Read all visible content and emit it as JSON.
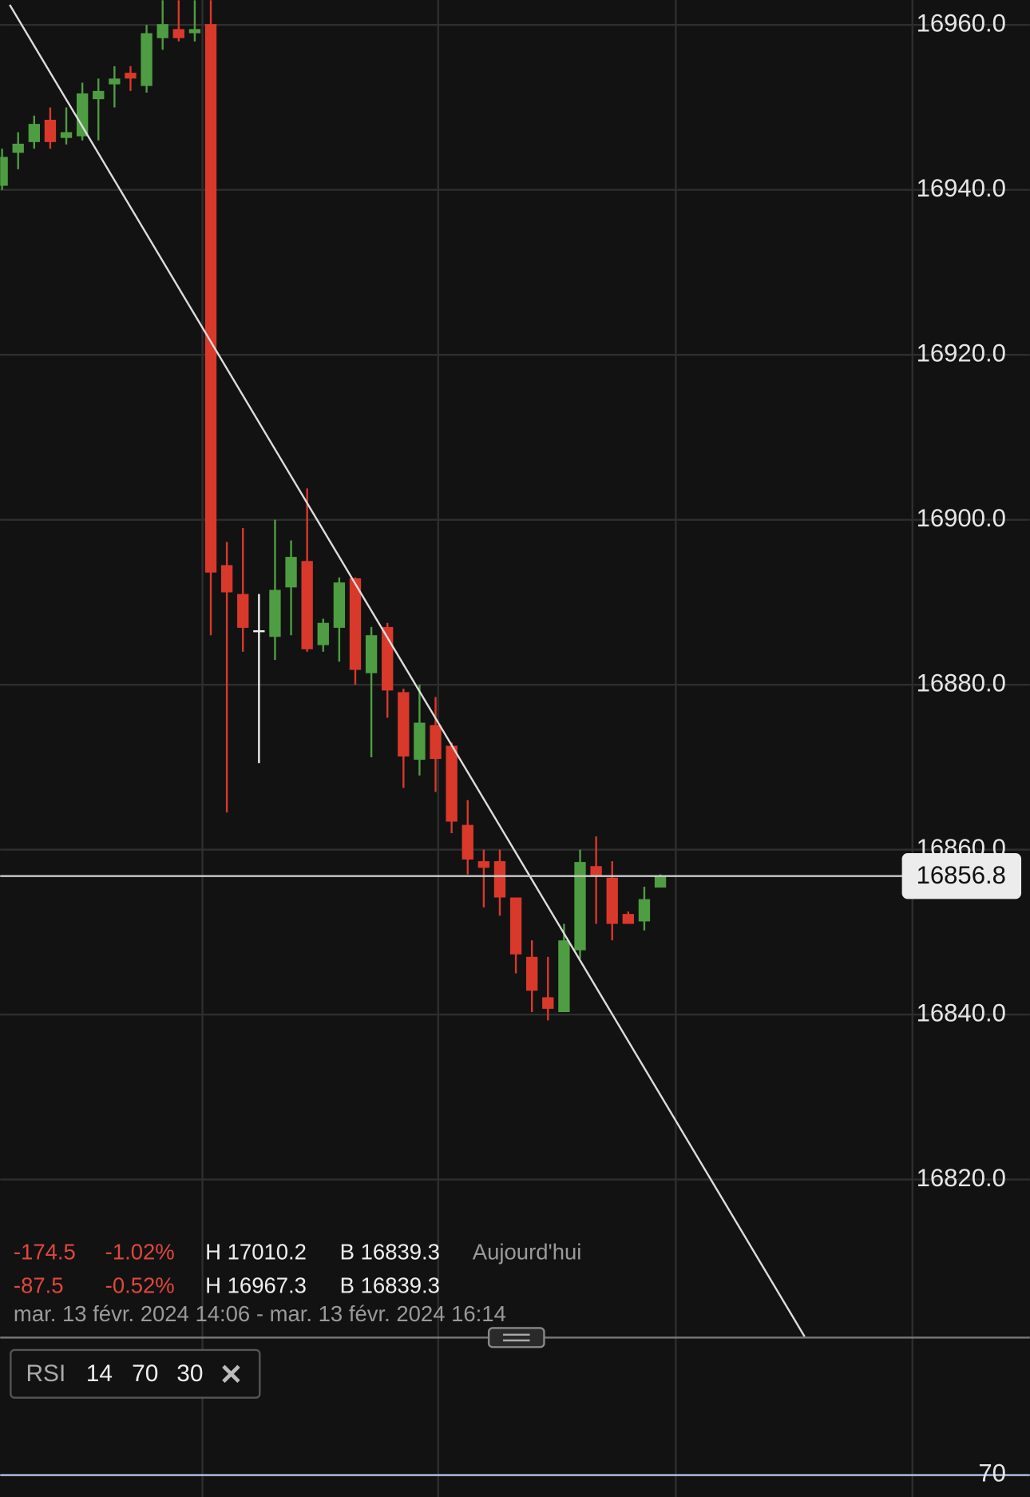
{
  "chart_data": {
    "type": "candlestick",
    "up_color": "#4f9d42",
    "down_color": "#d9392b",
    "doji_color": "#eeeeee",
    "ylim": [
      16962.1,
      16799.1
    ],
    "yticks": [
      {
        "value": 16960,
        "label": "16960.0"
      },
      {
        "value": 16940,
        "label": "16940.0"
      },
      {
        "value": 16920,
        "label": "16920.0"
      },
      {
        "value": 16900,
        "label": "16900.0"
      },
      {
        "value": 16880,
        "label": "16880.0"
      },
      {
        "value": 16860,
        "label": "16860.0"
      },
      {
        "value": 16840,
        "label": "16840.0"
      },
      {
        "value": 16820,
        "label": "16820.0"
      }
    ],
    "grid": true,
    "open": [
      16940.5,
      16944.5,
      16945.8,
      16948.5,
      16946.3,
      16946.5,
      16951,
      16952.8,
      16954.2,
      16952.6,
      16958.4,
      16959.5,
      16959,
      16960.1,
      16894.5,
      16891,
      16886.6,
      16885.8,
      16891.8,
      16895,
      16884.8,
      16886.9,
      16892.9,
      16881.4,
      16887,
      16879.1,
      16870.9,
      16875.1,
      16872.6,
      16863,
      16858.6,
      16858.6,
      16854.2,
      16847,
      16842.1,
      16840.3,
      16847.8,
      16858,
      16856.6,
      16852.2,
      16851.3,
      16855.4
    ],
    "high": [
      16945,
      16947,
      16949,
      16950,
      16950,
      16953,
      16953.5,
      16955,
      16955,
      16960,
      16963,
      16963,
      16963,
      16963,
      16897.3,
      16899,
      16891,
      16900,
      16897.5,
      16903.8,
      16888,
      16893,
      16893,
      16887,
      16887.5,
      16879.5,
      16880,
      16878.5,
      16873,
      16866,
      16860,
      16860,
      16854.2,
      16849,
      16847,
      16851,
      16860,
      16861.6,
      16858.6,
      16852.5,
      16855.5,
      16857
    ],
    "low": [
      16940,
      16942.5,
      16945,
      16945,
      16945.5,
      16946,
      16946,
      16950,
      16952,
      16951.8,
      16957,
      16958,
      16958,
      16886,
      16864.5,
      16884,
      16870.5,
      16883,
      16886,
      16884,
      16884,
      16882.8,
      16880,
      16871.2,
      16876,
      16867.5,
      16869,
      16867,
      16862,
      16857,
      16853,
      16852,
      16845,
      16840.3,
      16839.3,
      16840.3,
      16846.8,
      16851,
      16849,
      16851,
      16850.2,
      16856
    ],
    "close": [
      16944,
      16945.6,
      16948,
      16945.8,
      16947,
      16951.7,
      16952,
      16953.5,
      16953.5,
      16959,
      16960.1,
      16958.4,
      16959.5,
      16893.6,
      16891.2,
      16886.9,
      16886.6,
      16891.5,
      16895.5,
      16884.3,
      16887.5,
      16892.4,
      16881.8,
      16886,
      16879.3,
      16871.3,
      16875.4,
      16871,
      16863.4,
      16858.8,
      16857.8,
      16854.2,
      16847.3,
      16842.9,
      16840.7,
      16849,
      16858.5,
      16856.9,
      16851,
      16851,
      16854,
      16856.8
    ],
    "last_price": 16856.8,
    "rsi": {
      "label": "RSI",
      "params": [
        "14",
        "70",
        "30"
      ],
      "level": 70
    }
  },
  "info": {
    "rows": [
      [
        "-174.5",
        "-1.02%",
        "H 17010.2",
        "B 16839.3",
        "Aujourd'hui"
      ],
      [
        "-87.5",
        "-0.52%",
        "H 16967.3",
        "B 16839.3"
      ]
    ],
    "range": "mar. 13 févr. 2024 14:06 - mar. 13 févr. 2024 16:14"
  }
}
